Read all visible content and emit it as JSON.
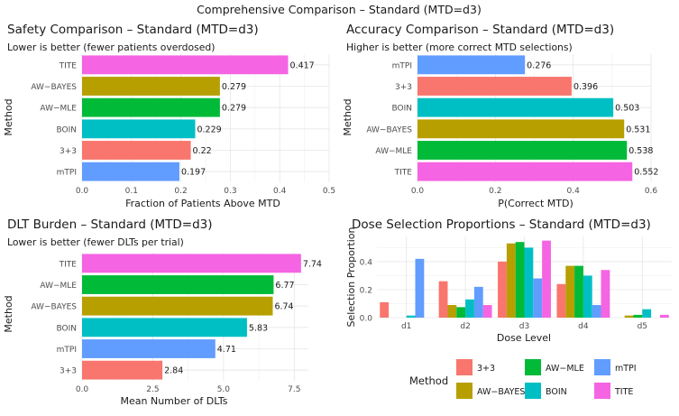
{
  "title": "Comprehensive Comparison – Standard (MTD=d3)",
  "colors": {
    "3+3": "#F8766D",
    "AW-BAYES": "#B79F00",
    "AW-MLE": "#00BA38",
    "BOIN": "#00BFC4",
    "mTPI": "#619CFF",
    "TITE": "#F564E3"
  },
  "chart_data": [
    {
      "type": "bar",
      "orientation": "horizontal",
      "title": "Safety Comparison – Standard (MTD=d3)",
      "subtitle": "Lower is better (fewer patients overdosed)",
      "xlabel": "Fraction of Patients Above MTD",
      "ylabel": "Method",
      "categories": [
        "TITE",
        "AW−BAYES",
        "AW−MLE",
        "BOIN",
        "3+3",
        "mTPI"
      ],
      "keys": [
        "TITE",
        "AW-BAYES",
        "AW-MLE",
        "BOIN",
        "3+3",
        "mTPI"
      ],
      "values": [
        0.417,
        0.279,
        0.279,
        0.229,
        0.22,
        0.197
      ],
      "labels": [
        "0.417",
        "0.279",
        "0.279",
        "0.229",
        "0.22",
        "0.197"
      ],
      "xlim": [
        0,
        0.5
      ],
      "xticks": [
        0,
        0.1,
        0.2,
        0.3,
        0.4,
        0.5
      ],
      "xtick_labels": [
        "0.0",
        "0.1",
        "0.2",
        "0.3",
        "0.4",
        "0.5"
      ]
    },
    {
      "type": "bar",
      "orientation": "horizontal",
      "title": "Accuracy Comparison – Standard (MTD=d3)",
      "subtitle": "Higher is better (more correct MTD selections)",
      "xlabel": "P(Correct MTD)",
      "ylabel": "Method",
      "categories": [
        "mTPI",
        "3+3",
        "BOIN",
        "AW−BAYES",
        "AW−MLE",
        "TITE"
      ],
      "keys": [
        "mTPI",
        "3+3",
        "BOIN",
        "AW-BAYES",
        "AW-MLE",
        "TITE"
      ],
      "values": [
        0.276,
        0.396,
        0.503,
        0.531,
        0.538,
        0.552
      ],
      "labels": [
        "0.276",
        "0.396",
        "0.503",
        "0.531",
        "0.538",
        "0.552"
      ],
      "xlim": [
        0,
        0.6
      ],
      "xticks": [
        0,
        0.2,
        0.4,
        0.6
      ],
      "xtick_labels": [
        "0.0",
        "0.2",
        "0.4",
        "0.6"
      ]
    },
    {
      "type": "bar",
      "orientation": "horizontal",
      "title": "DLT Burden – Standard (MTD=d3)",
      "subtitle": "Lower is better (fewer DLTs per trial)",
      "xlabel": "Mean Number of DLTs",
      "ylabel": "Method",
      "categories": [
        "TITE",
        "AW−MLE",
        "AW−BAYES",
        "BOIN",
        "mTPI",
        "3+3"
      ],
      "keys": [
        "TITE",
        "AW-MLE",
        "AW-BAYES",
        "BOIN",
        "mTPI",
        "3+3"
      ],
      "values": [
        7.74,
        6.77,
        6.74,
        5.83,
        4.71,
        2.84
      ],
      "labels": [
        "7.74",
        "6.77",
        "6.74",
        "5.83",
        "4.71",
        "2.84"
      ],
      "xlim": [
        0,
        8
      ],
      "xticks": [
        0,
        2.5,
        5,
        7.5
      ],
      "xtick_labels": [
        "0.0",
        "2.5",
        "5.0",
        "7.5"
      ]
    },
    {
      "type": "bar",
      "orientation": "vertical-grouped",
      "title": "Dose Selection Proportions – Standard (MTD=d3)",
      "xlabel": "Dose Level",
      "ylabel": "Selection Proportion",
      "categories": [
        "d1",
        "d2",
        "d3",
        "d4",
        "d5"
      ],
      "ylim": [
        0,
        0.58
      ],
      "yticks": [
        0,
        0.2,
        0.4
      ],
      "ytick_labels": [
        "0.0",
        "0.2",
        "0.4"
      ],
      "series": [
        {
          "name": "3+3",
          "key": "3+3",
          "values": [
            0.11,
            0.26,
            0.4,
            0.24,
            0.0
          ]
        },
        {
          "name": "AW−BAYES",
          "key": "AW-BAYES",
          "values": [
            0.0,
            0.09,
            0.53,
            0.37,
            0.015
          ]
        },
        {
          "name": "AW−MLE",
          "key": "AW-MLE",
          "values": [
            0.0,
            0.075,
            0.54,
            0.37,
            0.02
          ]
        },
        {
          "name": "BOIN",
          "key": "BOIN",
          "values": [
            0.015,
            0.13,
            0.5,
            0.3,
            0.06
          ]
        },
        {
          "name": "mTPI",
          "key": "mTPI",
          "values": [
            0.42,
            0.22,
            0.28,
            0.09,
            0.0
          ]
        },
        {
          "name": "TITE",
          "key": "TITE",
          "values": [
            0.0,
            0.09,
            0.55,
            0.34,
            0.02
          ]
        }
      ],
      "legend": {
        "title": "Method",
        "entries": [
          "3+3",
          "AW−MLE",
          "mTPI",
          "AW−BAYES",
          "BOIN",
          "TITE"
        ],
        "keys": [
          "3+3",
          "AW-MLE",
          "mTPI",
          "AW-BAYES",
          "BOIN",
          "TITE"
        ]
      }
    }
  ]
}
